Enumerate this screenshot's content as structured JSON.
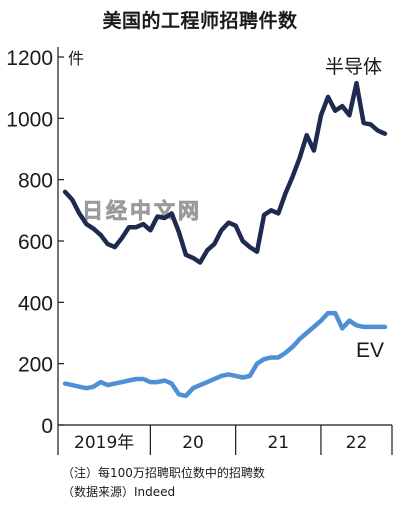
{
  "chart_data": {
    "type": "line",
    "title": "美国的工程师招聘件数",
    "ylabel": "件",
    "ylim": [
      0,
      1200
    ],
    "yticks": [
      0,
      200,
      400,
      600,
      800,
      1000,
      1200
    ],
    "grid": false,
    "x_range": [
      2018.917,
      2022.833
    ],
    "x_labels": [
      {
        "label": "2019年",
        "start": 2018.917,
        "end": 2020.0
      },
      {
        "label": "20",
        "start": 2020.0,
        "end": 2021.0
      },
      {
        "label": "21",
        "start": 2021.0,
        "end": 2022.0
      },
      {
        "label": "22",
        "start": 2022.0,
        "end": 2022.833
      }
    ],
    "x_dividers": [
      2020.0,
      2021.0,
      2022.0
    ],
    "series": [
      {
        "name": "半导体",
        "color": "#1e2a4f",
        "x": [
          2019.0,
          2019.083,
          2019.167,
          2019.25,
          2019.333,
          2019.417,
          2019.5,
          2019.583,
          2019.667,
          2019.75,
          2019.833,
          2019.917,
          2020.0,
          2020.083,
          2020.167,
          2020.25,
          2020.333,
          2020.417,
          2020.5,
          2020.583,
          2020.667,
          2020.75,
          2020.833,
          2020.917,
          2021.0,
          2021.083,
          2021.167,
          2021.25,
          2021.333,
          2021.417,
          2021.5,
          2021.583,
          2021.667,
          2021.75,
          2021.833,
          2021.917,
          2022.0,
          2022.083,
          2022.167,
          2022.25,
          2022.333,
          2022.417,
          2022.5,
          2022.583,
          2022.667,
          2022.75
        ],
        "values": [
          760,
          735,
          690,
          655,
          640,
          620,
          590,
          580,
          610,
          645,
          645,
          655,
          635,
          680,
          675,
          690,
          630,
          555,
          545,
          530,
          570,
          590,
          635,
          660,
          650,
          600,
          580,
          565,
          685,
          700,
          690,
          755,
          810,
          870,
          945,
          895,
          1010,
          1070,
          1025,
          1040,
          1010,
          1115,
          985,
          980,
          960,
          950
        ]
      },
      {
        "name": "EV",
        "color": "#4f8fd6",
        "x": [
          2019.0,
          2019.083,
          2019.167,
          2019.25,
          2019.333,
          2019.417,
          2019.5,
          2019.583,
          2019.667,
          2019.75,
          2019.833,
          2019.917,
          2020.0,
          2020.083,
          2020.167,
          2020.25,
          2020.333,
          2020.417,
          2020.5,
          2020.583,
          2020.667,
          2020.75,
          2020.833,
          2020.917,
          2021.0,
          2021.083,
          2021.167,
          2021.25,
          2021.333,
          2021.417,
          2021.5,
          2021.583,
          2021.667,
          2021.75,
          2021.833,
          2021.917,
          2022.0,
          2022.083,
          2022.167,
          2022.25,
          2022.333,
          2022.417,
          2022.5,
          2022.583,
          2022.667,
          2022.75
        ],
        "values": [
          135,
          130,
          125,
          120,
          125,
          140,
          130,
          135,
          140,
          145,
          150,
          150,
          140,
          140,
          145,
          135,
          100,
          95,
          120,
          130,
          140,
          150,
          160,
          165,
          160,
          155,
          160,
          200,
          215,
          220,
          220,
          235,
          255,
          280,
          300,
          320,
          340,
          365,
          365,
          315,
          340,
          325,
          320,
          320,
          320,
          320
        ]
      }
    ]
  },
  "footnote": {
    "note": "（注）每100万招聘职位数中的招聘数",
    "source": "（数据来源）Indeed"
  },
  "watermark": "日经中文网"
}
